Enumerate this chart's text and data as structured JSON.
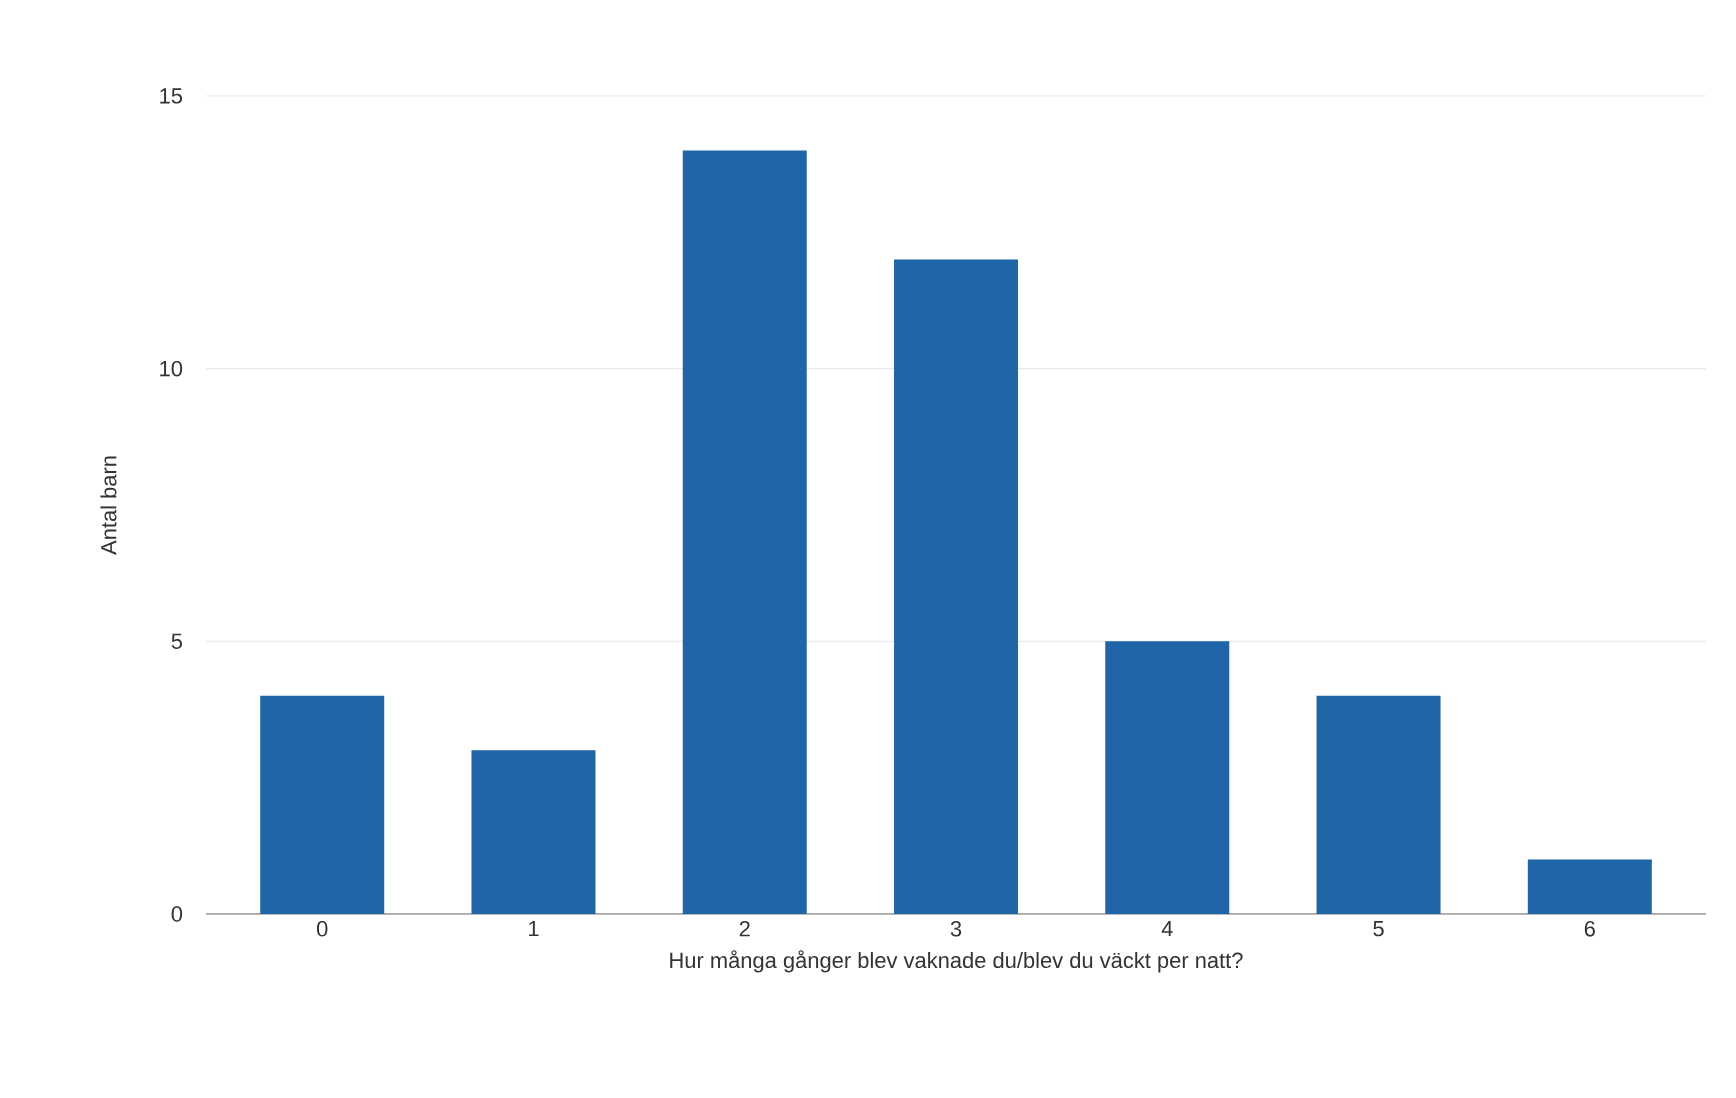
{
  "chart_data": {
    "type": "bar",
    "xlabel": "Hur många gånger blev vaknade du/blev du väckt per natt?",
    "ylabel": "Antal barn",
    "categories": [
      "0",
      "1",
      "2",
      "3",
      "4",
      "5",
      "6"
    ],
    "values": [
      4,
      3,
      14,
      12,
      5,
      4,
      1
    ],
    "color": "#1f65a8",
    "ylim": [
      0,
      15
    ],
    "yticks": [
      0,
      5,
      10,
      15
    ],
    "grid": "y"
  }
}
